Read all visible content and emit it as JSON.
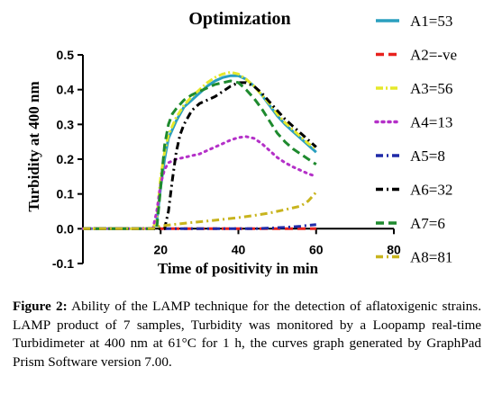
{
  "chart_data": {
    "type": "line",
    "title": "Optimization",
    "xlabel": "Time of positivity in min",
    "ylabel": "Turbidity at 400 nm",
    "xlim": [
      0,
      80
    ],
    "ylim": [
      -0.1,
      0.5
    ],
    "x_ticks": [
      20,
      40,
      60,
      80
    ],
    "y_ticks": [
      -0.1,
      0.0,
      0.1,
      0.2,
      0.3,
      0.4,
      0.5
    ],
    "x_tick_labels": [
      "20",
      "40",
      "60",
      "80"
    ],
    "y_tick_labels": [
      "-0.1",
      "0.0",
      "0.1",
      "0.2",
      "0.3",
      "0.4",
      "0.5"
    ],
    "grid": false,
    "legend_position": "right",
    "series": [
      {
        "name": "A1=53",
        "color": "#2a9fbf",
        "style": "solid",
        "x": [
          0,
          18,
          19,
          20,
          21,
          22,
          24,
          26,
          28,
          30,
          32,
          34,
          36,
          38,
          40,
          42,
          44,
          46,
          48,
          50,
          52,
          54,
          56,
          58,
          60
        ],
        "y": [
          0,
          0,
          0.02,
          0.12,
          0.2,
          0.26,
          0.31,
          0.35,
          0.37,
          0.39,
          0.41,
          0.425,
          0.435,
          0.44,
          0.44,
          0.43,
          0.41,
          0.385,
          0.355,
          0.325,
          0.3,
          0.28,
          0.26,
          0.24,
          0.22
        ]
      },
      {
        "name": "A2=-ve",
        "color": "#e8211d",
        "style": "dashed",
        "x": [
          0,
          60
        ],
        "y": [
          0,
          0
        ]
      },
      {
        "name": "A3=56",
        "color": "#e6e82a",
        "style": "dashdot-yellow",
        "x": [
          0,
          18,
          19,
          20,
          21,
          22,
          24,
          26,
          28,
          30,
          32,
          34,
          36,
          38,
          40,
          42,
          44,
          46,
          48,
          50,
          52,
          54,
          56,
          58,
          60
        ],
        "y": [
          0,
          0,
          0.03,
          0.15,
          0.22,
          0.27,
          0.32,
          0.355,
          0.38,
          0.4,
          0.42,
          0.435,
          0.445,
          0.45,
          0.445,
          0.43,
          0.41,
          0.385,
          0.36,
          0.33,
          0.305,
          0.285,
          0.265,
          0.245,
          0.23
        ]
      },
      {
        "name": "A4=13",
        "color": "#b430c8",
        "style": "dotted",
        "x": [
          0,
          18,
          19,
          20,
          21,
          22,
          24,
          26,
          28,
          30,
          32,
          34,
          36,
          38,
          40,
          42,
          44,
          46,
          48,
          50,
          52,
          54,
          56,
          58,
          60
        ],
        "y": [
          0,
          0,
          0.05,
          0.13,
          0.17,
          0.19,
          0.2,
          0.205,
          0.21,
          0.215,
          0.225,
          0.235,
          0.245,
          0.255,
          0.262,
          0.265,
          0.26,
          0.245,
          0.225,
          0.205,
          0.19,
          0.178,
          0.168,
          0.158,
          0.15
        ]
      },
      {
        "name": "A5=8",
        "color": "#1f2aa8",
        "style": "dashdot",
        "x": [
          0,
          40,
          44,
          48,
          52,
          56,
          58,
          60
        ],
        "y": [
          0,
          0,
          0,
          0.002,
          0.004,
          0.007,
          0.01,
          0.012
        ]
      },
      {
        "name": "A6=32",
        "color": "#000000",
        "style": "dashdot",
        "x": [
          0,
          21,
          22,
          23,
          24,
          25,
          26,
          28,
          30,
          32,
          34,
          36,
          38,
          40,
          42,
          44,
          46,
          48,
          50,
          52,
          54,
          56,
          58,
          60
        ],
        "y": [
          0,
          0,
          0.05,
          0.14,
          0.22,
          0.27,
          0.3,
          0.34,
          0.36,
          0.37,
          0.38,
          0.395,
          0.41,
          0.42,
          0.42,
          0.41,
          0.39,
          0.365,
          0.34,
          0.315,
          0.295,
          0.275,
          0.255,
          0.235
        ]
      },
      {
        "name": "A7=6",
        "color": "#1e8a2e",
        "style": "dashed",
        "x": [
          0,
          19,
          20,
          21,
          22,
          23,
          24,
          26,
          28,
          30,
          32,
          34,
          36,
          38,
          40,
          42,
          44,
          46,
          48,
          50,
          52,
          54,
          56,
          58,
          60
        ],
        "y": [
          0,
          0,
          0.12,
          0.24,
          0.3,
          0.33,
          0.345,
          0.37,
          0.385,
          0.395,
          0.405,
          0.415,
          0.42,
          0.425,
          0.42,
          0.4,
          0.375,
          0.345,
          0.31,
          0.275,
          0.25,
          0.23,
          0.215,
          0.2,
          0.185
        ]
      },
      {
        "name": "A8=81",
        "color": "#c8b41e",
        "style": "dashdot",
        "x": [
          0,
          18,
          20,
          24,
          28,
          32,
          36,
          40,
          44,
          48,
          52,
          56,
          58,
          60
        ],
        "y": [
          0,
          0,
          0.008,
          0.013,
          0.018,
          0.022,
          0.027,
          0.032,
          0.038,
          0.045,
          0.055,
          0.065,
          0.08,
          0.105
        ]
      }
    ]
  },
  "caption": {
    "label": "Figure 2:",
    "text": "Ability of the LAMP technique for the detection of aflatoxigenic strains. LAMP product of 7 samples, Turbidity was monitored by a Loopamp real-time Turbidimeter at 400 nm at 61°C for 1 h, the curves graph generated by GraphPad Prism Software version 7.00."
  }
}
